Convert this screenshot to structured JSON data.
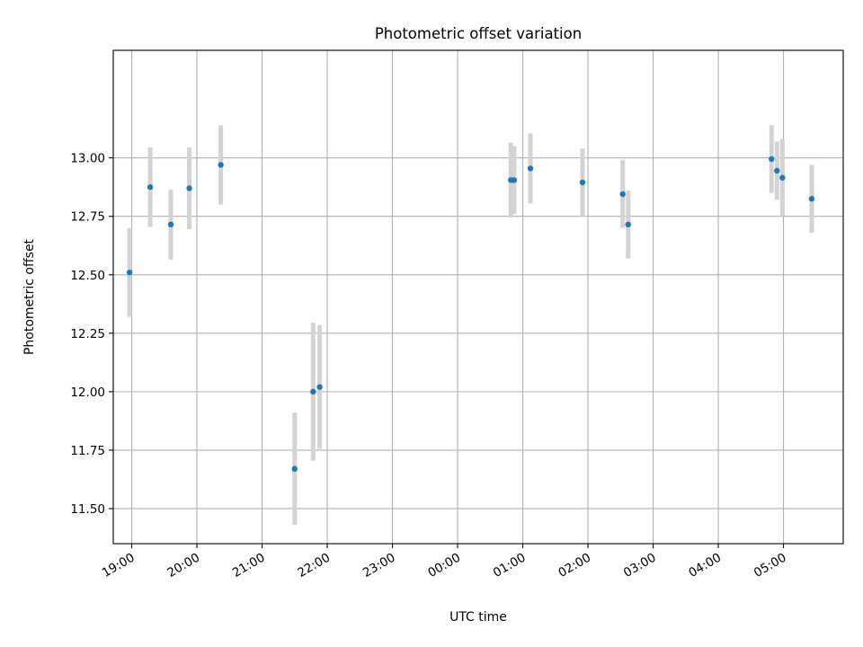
{
  "chart_data": {
    "type": "scatter",
    "title": "Photometric offset variation",
    "xlabel": "UTC time",
    "ylabel": "Photometric offset",
    "x_unit": "UTC time (hours, consecutive night)",
    "xlim": [
      "18:43",
      "05:55"
    ],
    "ylim": [
      11.35,
      13.46
    ],
    "x_ticks": [
      "19:00",
      "20:00",
      "21:00",
      "22:00",
      "23:00",
      "00:00",
      "01:00",
      "02:00",
      "03:00",
      "04:00",
      "05:00"
    ],
    "y_ticks": [
      "11.50",
      "11.75",
      "12.00",
      "12.25",
      "12.50",
      "12.75",
      "13.00"
    ],
    "grid": true,
    "marker_color": "#1f77b4",
    "errorbar_color": "#d3d3d3",
    "series": [
      {
        "points": [
          {
            "x": "18:58",
            "y": 12.51,
            "err": 0.19
          },
          {
            "x": "19:17",
            "y": 12.875,
            "err": 0.17
          },
          {
            "x": "19:36",
            "y": 12.715,
            "err": 0.15
          },
          {
            "x": "19:53",
            "y": 12.87,
            "err": 0.175
          },
          {
            "x": "20:22",
            "y": 12.97,
            "err": 0.17
          },
          {
            "x": "21:30",
            "y": 11.67,
            "err": 0.24
          },
          {
            "x": "21:47",
            "y": 12.0,
            "err": 0.295
          },
          {
            "x": "21:53",
            "y": 12.02,
            "err": 0.265
          },
          {
            "x": "00:49",
            "y": 12.905,
            "err": 0.16
          },
          {
            "x": "00:52",
            "y": 12.905,
            "err": 0.145
          },
          {
            "x": "01:07",
            "y": 12.955,
            "err": 0.15
          },
          {
            "x": "01:55",
            "y": 12.895,
            "err": 0.145
          },
          {
            "x": "02:32",
            "y": 12.845,
            "err": 0.145
          },
          {
            "x": "02:37",
            "y": 12.715,
            "err": 0.145
          },
          {
            "x": "04:49",
            "y": 12.995,
            "err": 0.145
          },
          {
            "x": "04:54",
            "y": 12.945,
            "err": 0.125
          },
          {
            "x": "04:59",
            "y": 12.915,
            "err": 0.165
          },
          {
            "x": "05:26",
            "y": 12.825,
            "err": 0.145
          }
        ]
      }
    ]
  }
}
